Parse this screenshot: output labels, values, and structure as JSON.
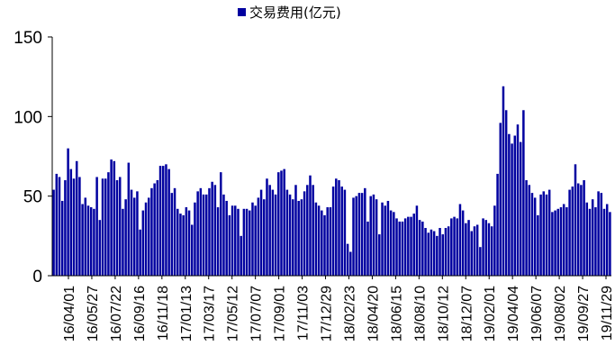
{
  "chart_data": {
    "type": "bar",
    "legend": {
      "position": "top-center",
      "label": "交易费用(亿元)"
    },
    "series": [
      {
        "name": "交易费用(亿元)",
        "color": "#0000A0",
        "values": [
          54,
          64,
          62,
          47,
          60,
          80,
          67,
          61,
          72,
          62,
          45,
          49,
          44,
          43,
          42,
          62,
          35,
          61,
          61,
          65,
          73,
          72,
          60,
          62,
          42,
          48,
          71,
          54,
          49,
          53,
          29,
          41,
          46,
          49,
          55,
          58,
          60,
          69,
          69,
          70,
          67,
          52,
          55,
          42,
          39,
          38,
          43,
          41,
          32,
          46,
          53,
          55,
          51,
          51,
          55,
          59,
          57,
          43,
          65,
          51,
          47,
          38,
          44,
          44,
          42,
          25,
          42,
          42,
          41,
          46,
          44,
          49,
          54,
          48,
          61,
          57,
          54,
          51,
          65,
          66,
          67,
          54,
          51,
          48,
          57,
          47,
          48,
          53,
          57,
          63,
          57,
          46,
          44,
          41,
          38,
          43,
          43,
          56,
          61,
          60,
          56,
          54,
          20,
          15,
          49,
          50,
          52,
          52,
          55,
          34,
          50,
          51,
          48,
          26,
          46,
          44,
          47,
          41,
          40,
          36,
          34,
          34,
          36,
          37,
          37,
          39,
          44,
          35,
          34,
          30,
          27,
          29,
          28,
          25,
          30,
          26,
          30,
          31,
          36,
          37,
          36,
          45,
          41,
          33,
          35,
          28,
          31,
          32,
          18,
          36,
          35,
          33,
          31,
          44,
          64,
          96,
          119,
          104,
          89,
          83,
          88,
          95,
          84,
          104,
          60,
          57,
          52,
          49,
          38,
          51,
          53,
          51,
          54,
          40,
          41,
          42,
          43,
          45,
          43,
          54,
          56,
          70,
          58,
          57,
          60,
          46,
          42,
          48,
          43,
          53,
          52,
          42,
          45,
          40
        ]
      }
    ],
    "y_axis": {
      "ylim": [
        0,
        150
      ],
      "ticks": [
        0,
        50,
        100,
        150
      ]
    },
    "x_tick_labels": [
      "16/04/01",
      "16/05/27",
      "16/07/22",
      "16/09/16",
      "16/11/18",
      "17/01/13",
      "17/03/17",
      "17/05/12",
      "17/07/07",
      "17/09/01",
      "17/11/03",
      "17/12/29",
      "18/02/23",
      "18/04/20",
      "18/06/15",
      "18/08/10",
      "18/10/12",
      "18/12/07",
      "19/02/01",
      "19/04/04",
      "19/06/07",
      "19/08/02",
      "19/09/27",
      "19/11/29"
    ],
    "grid": false
  }
}
